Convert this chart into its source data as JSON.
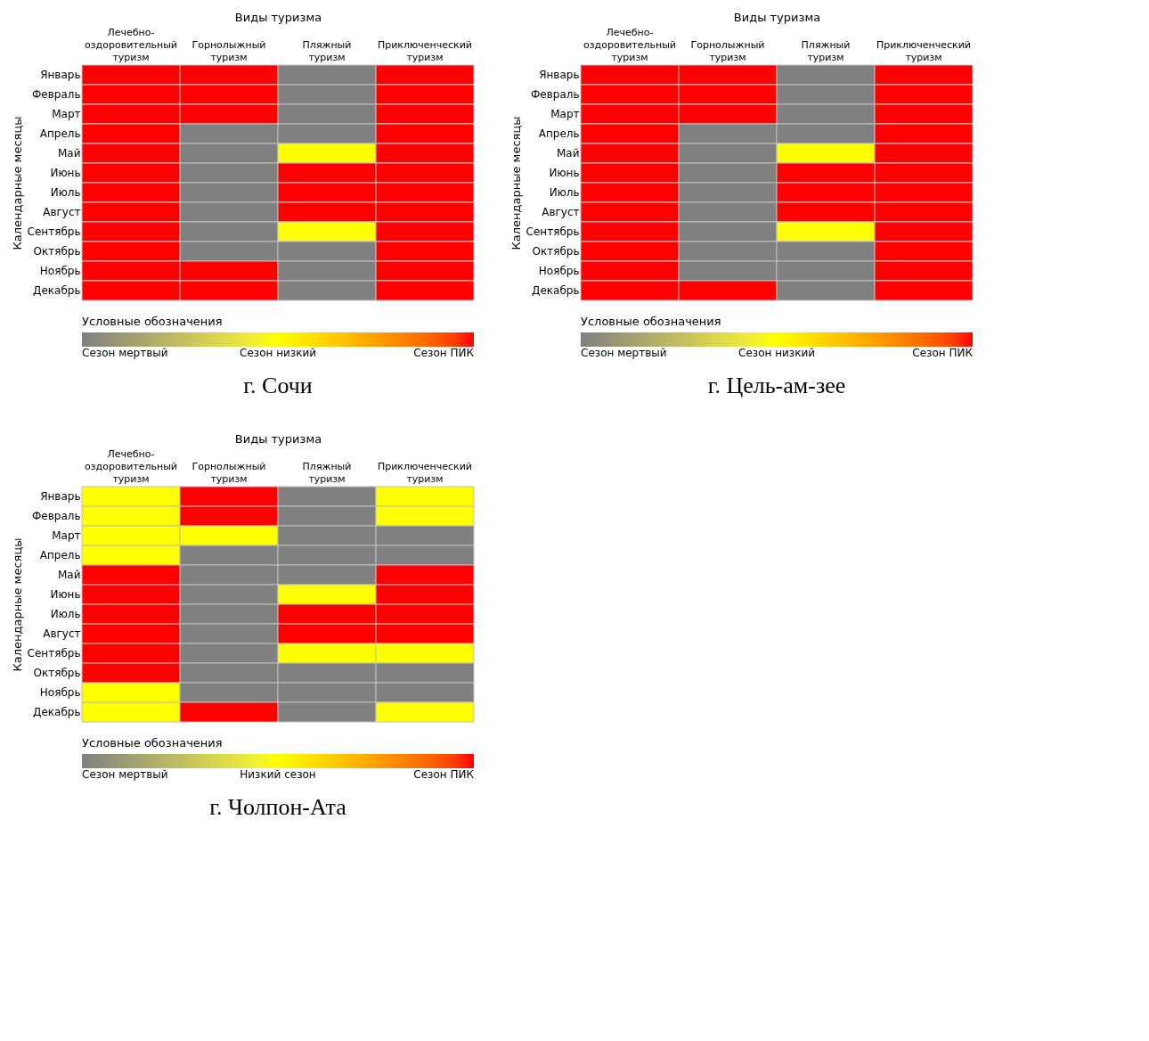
{
  "chart_data": [
    {
      "type": "heatmap",
      "title": "г. Сочи",
      "xlabel": "Виды туризма",
      "ylabel": "Календарные месяцы",
      "legend_title": "Условные обозначения",
      "categories": [
        "Лечебно-оздоровительный туризм",
        "Горнолыжный туризм",
        "Пляжный туризм",
        "Приключенческий туризм"
      ],
      "y_categories": [
        "Январь",
        "Февраль",
        "Март",
        "Апрель",
        "Май",
        "Июнь",
        "Июль",
        "Август",
        "Сентябрь",
        "Октябрь",
        "Ноябрь",
        "Декабрь"
      ],
      "cells": [
        [
          2,
          2,
          0,
          2
        ],
        [
          2,
          2,
          0,
          2
        ],
        [
          2,
          2,
          0,
          2
        ],
        [
          2,
          0,
          0,
          2
        ],
        [
          2,
          0,
          1,
          2
        ],
        [
          2,
          0,
          2,
          2
        ],
        [
          2,
          0,
          2,
          2
        ],
        [
          2,
          0,
          2,
          2
        ],
        [
          2,
          0,
          1,
          2
        ],
        [
          2,
          0,
          0,
          2
        ],
        [
          2,
          2,
          0,
          2
        ],
        [
          2,
          2,
          0,
          2
        ]
      ],
      "clim": [
        0,
        2
      ],
      "cticks": [
        {
          "value": 2,
          "label": "Сезон ПИК"
        },
        {
          "value": 1,
          "label": "Сезон низкий"
        },
        {
          "value": 0,
          "label": "Сезон мертвый"
        }
      ],
      "colors": [
        "#808080",
        "#ffff00",
        "#ff0000"
      ]
    },
    {
      "type": "heatmap",
      "title": "г. Цель-ам-зее",
      "xlabel": "Виды туризма",
      "ylabel": "Календарные месяцы",
      "legend_title": "Условные обозначения",
      "categories": [
        "Лечебно-оздоровительный туризм",
        "Горнолыжный туризм",
        "Пляжный туризм",
        "Приключенческий туризм"
      ],
      "y_categories": [
        "Январь",
        "Февраль",
        "Март",
        "Апрель",
        "Май",
        "Июнь",
        "Июль",
        "Август",
        "Сентябрь",
        "Октябрь",
        "Ноябрь",
        "Декабрь"
      ],
      "cells": [
        [
          2,
          2,
          0,
          2
        ],
        [
          2,
          2,
          0,
          2
        ],
        [
          2,
          2,
          0,
          2
        ],
        [
          2,
          0,
          0,
          2
        ],
        [
          2,
          0,
          1,
          2
        ],
        [
          2,
          0,
          2,
          2
        ],
        [
          2,
          0,
          2,
          2
        ],
        [
          2,
          0,
          2,
          2
        ],
        [
          2,
          0,
          1,
          2
        ],
        [
          2,
          0,
          0,
          2
        ],
        [
          2,
          0,
          0,
          2
        ],
        [
          2,
          2,
          0,
          2
        ]
      ],
      "clim": [
        0,
        2
      ],
      "cticks": [
        {
          "value": 2,
          "label": "Сезон ПИК"
        },
        {
          "value": 1,
          "label": "Сезон низкий"
        },
        {
          "value": 0,
          "label": "Сезон мертвый"
        }
      ],
      "colors": [
        "#808080",
        "#ffff00",
        "#ff0000"
      ]
    },
    {
      "type": "heatmap",
      "title": "г. Чолпон-Ата",
      "xlabel": "Виды туризма",
      "ylabel": "Календарные месяцы",
      "legend_title": "Условные обозначения",
      "categories": [
        "Лечебно-оздоровительный туризм",
        "Горнолыжный туризм",
        "Пляжный туризм",
        "Приключенческий туризм"
      ],
      "y_categories": [
        "Январь",
        "Февраль",
        "Март",
        "Апрель",
        "Май",
        "Июнь",
        "Июль",
        "Август",
        "Сентябрь",
        "Октябрь",
        "Ноябрь",
        "Декабрь"
      ],
      "cells": [
        [
          1,
          2,
          0,
          1
        ],
        [
          1,
          2,
          0,
          1
        ],
        [
          1,
          1,
          0,
          0
        ],
        [
          1,
          0,
          0,
          0
        ],
        [
          2,
          0,
          0,
          2
        ],
        [
          2,
          0,
          1,
          2
        ],
        [
          2,
          0,
          2,
          2
        ],
        [
          2,
          0,
          2,
          2
        ],
        [
          2,
          0,
          1,
          1
        ],
        [
          2,
          0,
          0,
          0
        ],
        [
          1,
          0,
          0,
          0
        ],
        [
          1,
          2,
          0,
          1
        ]
      ],
      "clim": [
        0,
        2
      ],
      "cticks": [
        {
          "value": 2,
          "label": "Сезон ПИК"
        },
        {
          "value": 1,
          "label": "Низкий сезон"
        },
        {
          "value": 0,
          "label": "Сезон мертвый"
        }
      ],
      "colors": [
        "#808080",
        "#ffff00",
        "#ff0000"
      ]
    }
  ]
}
